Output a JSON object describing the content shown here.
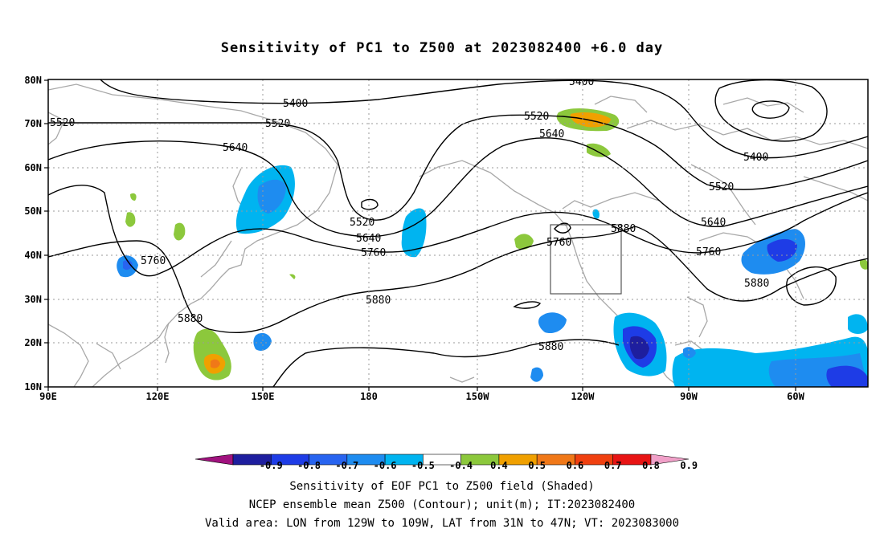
{
  "title": "Sensitivity of PC1 to Z500 at 2023082400 +6.0 day",
  "lat_labels": [
    "80N",
    "70N",
    "60N",
    "50N",
    "40N",
    "30N",
    "20N",
    "10N"
  ],
  "lon_labels": [
    "90E",
    "120E",
    "150E",
    "180",
    "150W",
    "120W",
    "90W",
    "60W"
  ],
  "contour_labels": [
    "5400",
    "5400",
    "5400",
    "5520",
    "5520",
    "5520",
    "5520",
    "5520",
    "5640",
    "5640",
    "5640",
    "5640",
    "5760",
    "5760",
    "5760",
    "5760",
    "5880",
    "5880",
    "5880",
    "5880",
    "5880"
  ],
  "colorbar": {
    "labels": [
      "-0.9",
      "-0.8",
      "-0.7",
      "-0.6",
      "-0.5",
      "-0.4",
      "0.4",
      "0.5",
      "0.6",
      "0.7",
      "0.8",
      "0.9"
    ],
    "colors": [
      "#a0127e",
      "#1e1e9e",
      "#1e3ce6",
      "#2864f0",
      "#1e8cf0",
      "#00b4f0",
      "#ffffff",
      "#8cc83c",
      "#f0a000",
      "#f07818",
      "#f04010",
      "#e81414",
      "#f0a0c8"
    ]
  },
  "footer": {
    "line1": "Sensitivity of EOF PC1 to Z500 field (Shaded)",
    "line2": "NCEP ensemble mean Z500 (Contour); unit(m); IT:2023082400",
    "line3": "Valid area: LON from 129W to 109W, LAT from 31N to 47N; VT: 2023083000"
  }
}
